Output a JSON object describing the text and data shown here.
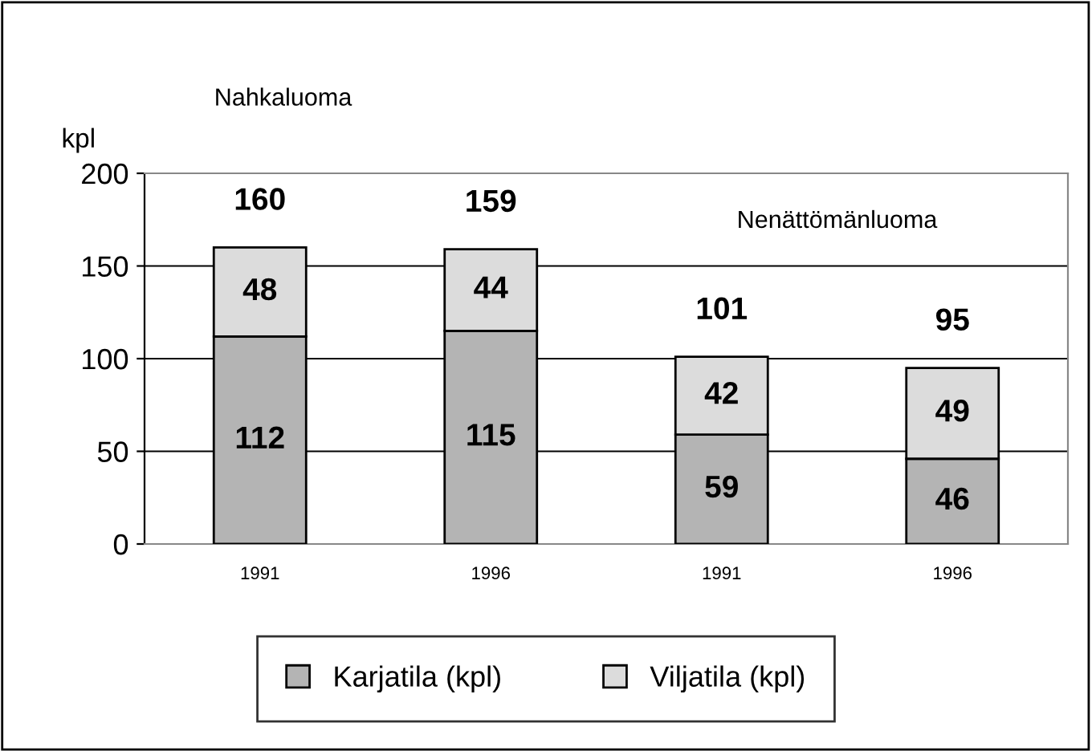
{
  "chart_data": {
    "type": "bar",
    "stacked": true,
    "ylabel": "kpl",
    "annotations": [
      "Nahkaluoma",
      "Nenättömänluoma"
    ],
    "categories": [
      "1991",
      "1996",
      "1991",
      "1996"
    ],
    "series": [
      {
        "name": "Karjatila (kpl)",
        "color": "#b4b4b4",
        "values": [
          112,
          115,
          59,
          46
        ]
      },
      {
        "name": "Viljatila (kpl)",
        "color": "#dcdcdc",
        "values": [
          48,
          44,
          42,
          49
        ]
      }
    ],
    "totals": [
      "160",
      "159",
      "101",
      "95"
    ],
    "data_labels": true,
    "ylim": [
      0,
      200
    ],
    "yticks": [
      0,
      50,
      100,
      150,
      200
    ],
    "grid": "y",
    "legend": "bottom"
  }
}
